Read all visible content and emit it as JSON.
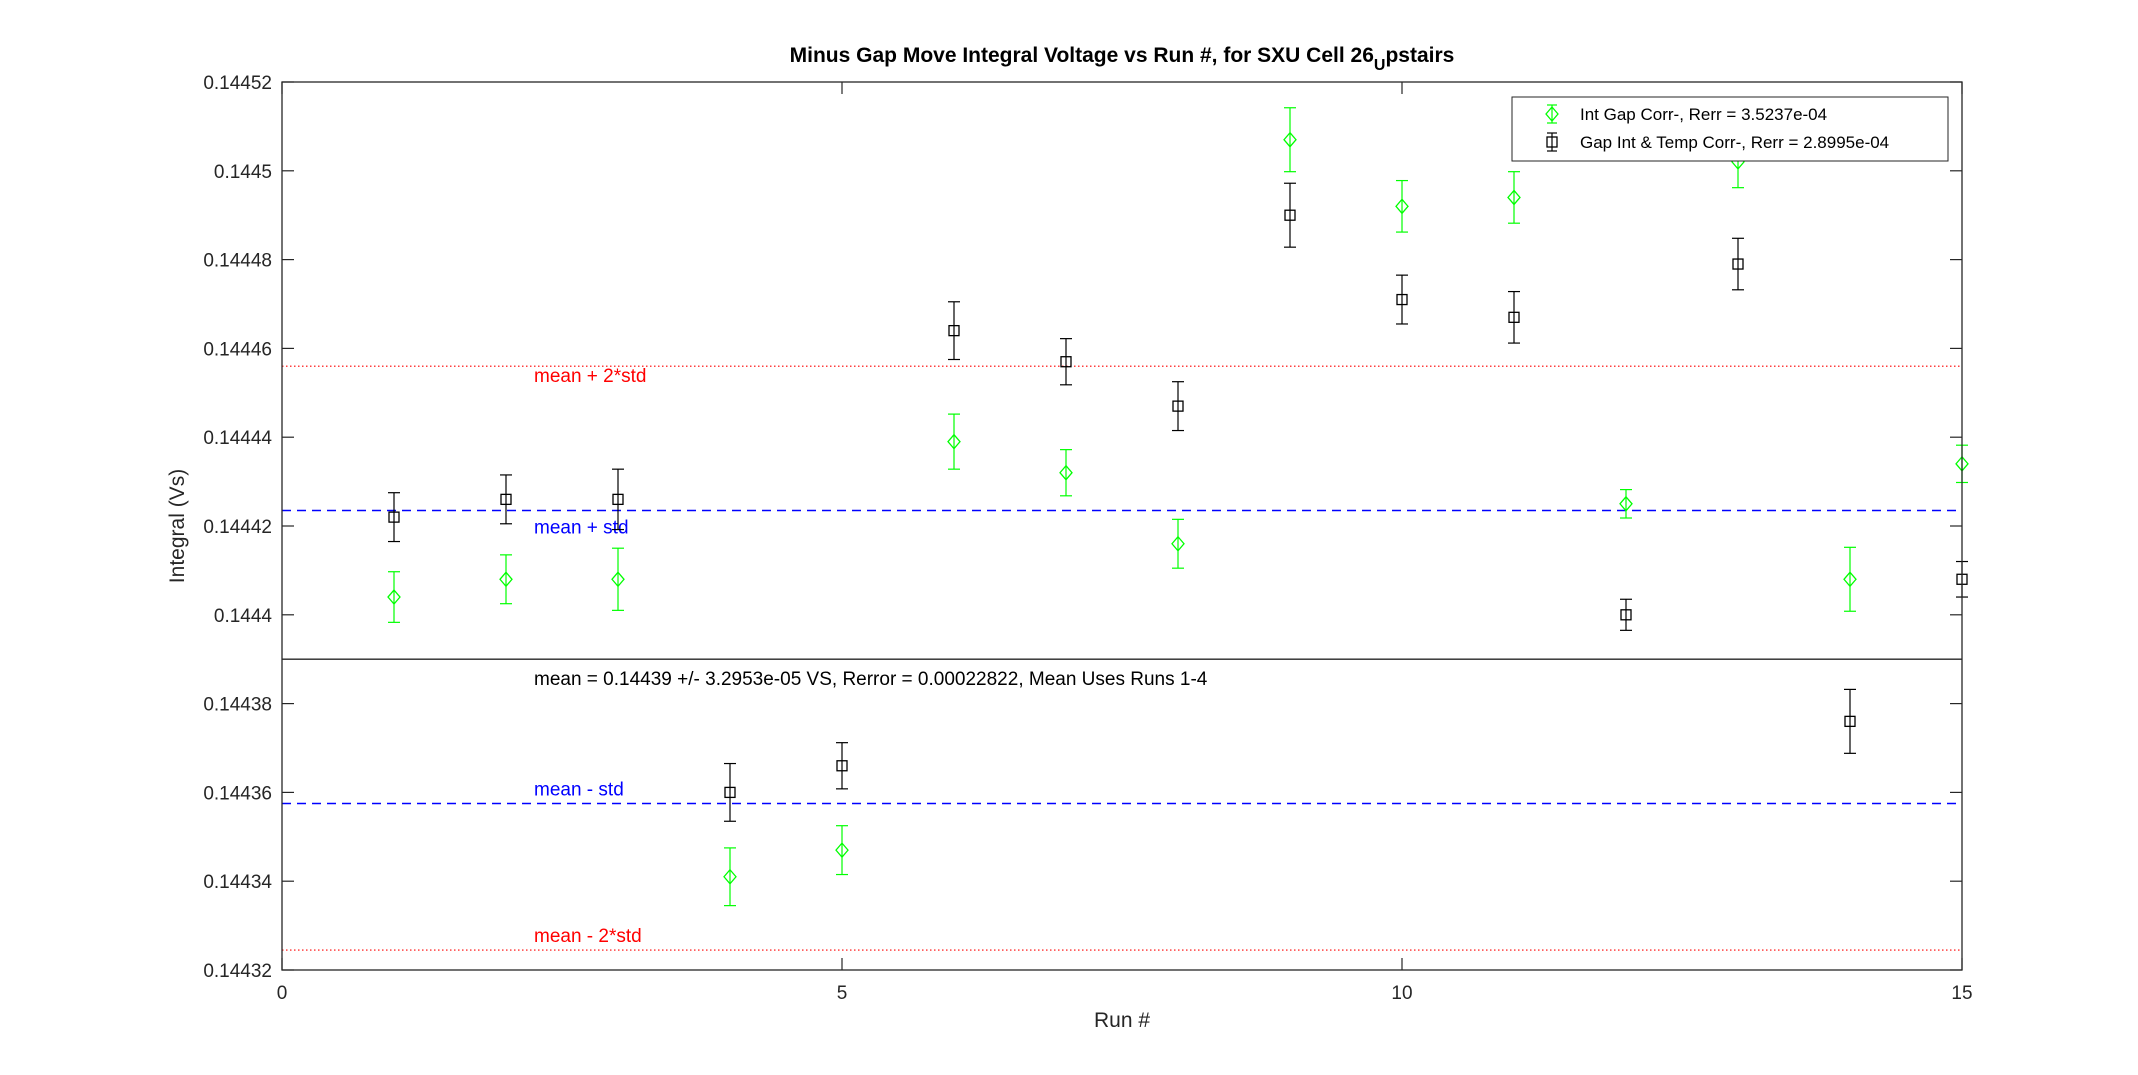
{
  "chart_data": {
    "type": "scatter",
    "title_main": "Minus Gap Move Integral Voltage vs Run #, for SXU Cell 26",
    "title_sub": "U",
    "title_rest": "pstairs",
    "xlabel": "Run #",
    "ylabel": "Integral (Vs)",
    "xlim": [
      0,
      15
    ],
    "ylim": [
      0.14432,
      0.14452
    ],
    "xticks": [
      0,
      5,
      10,
      15
    ],
    "xtick_labels": [
      "0",
      "5",
      "10",
      "15"
    ],
    "yticks": [
      0.14432,
      0.14434,
      0.14436,
      0.14438,
      0.1444,
      0.14442,
      0.14444,
      0.14446,
      0.14448,
      0.1445,
      0.14452
    ],
    "ytick_labels": [
      "0.14432",
      "0.14434",
      "0.14436",
      "0.14438",
      "0.1444",
      "0.14442",
      "0.14444",
      "0.14446",
      "0.14448",
      "0.1445",
      "0.14452"
    ],
    "legend_position": "top-right",
    "colors": {
      "green": "#00ff00",
      "black": "#000000",
      "red": "#ff0000",
      "blue": "#0000ff",
      "divider": "#262626"
    },
    "series": [
      {
        "name": "Int Gap Corr-, Rerr = 3.5237e-04",
        "marker": "diamond",
        "color": "#00ff00",
        "x": [
          1,
          2,
          3,
          4,
          5,
          6,
          7,
          8,
          9,
          10,
          11,
          12,
          13,
          14,
          15
        ],
        "y": [
          0.144404,
          0.144408,
          0.144408,
          0.144341,
          0.144347,
          0.144439,
          0.144432,
          0.144416,
          0.144507,
          0.144492,
          0.144494,
          0.144425,
          0.144502,
          0.144408,
          0.144434
        ],
        "err": [
          5.7e-06,
          5.5e-06,
          7e-06,
          6.5e-06,
          5.5e-06,
          6.2e-06,
          5.2e-06,
          5.5e-06,
          7.2e-06,
          5.8e-06,
          5.8e-06,
          3.2e-06,
          5.8e-06,
          7.2e-06,
          4.2e-06
        ]
      },
      {
        "name": "Gap Int & Temp Corr-, Rerr = 2.8995e-04",
        "marker": "square",
        "color": "#000000",
        "x": [
          1,
          2,
          3,
          4,
          5,
          6,
          7,
          8,
          9,
          10,
          11,
          12,
          13,
          14,
          15
        ],
        "y": [
          0.144422,
          0.144426,
          0.144426,
          0.14436,
          0.144366,
          0.144464,
          0.144457,
          0.144447,
          0.14449,
          0.144471,
          0.144467,
          0.1444,
          0.144479,
          0.144376,
          0.144408
        ],
        "err": [
          5.5e-06,
          5.5e-06,
          6.8e-06,
          6.5e-06,
          5.2e-06,
          6.5e-06,
          5.2e-06,
          5.5e-06,
          7.2e-06,
          5.5e-06,
          5.8e-06,
          3.5e-06,
          5.8e-06,
          7.2e-06,
          4e-06
        ]
      }
    ],
    "hlines": [
      {
        "y": 0.144456,
        "style": "dotted",
        "color": "#ff0000",
        "label": "mean + 2*std"
      },
      {
        "y": 0.1444235,
        "style": "dashed",
        "color": "#0000ff",
        "label": "mean + std"
      },
      {
        "y": 0.1443575,
        "style": "dashed",
        "color": "#0000ff",
        "label": "mean - std"
      },
      {
        "y": 0.1443245,
        "style": "dotted",
        "color": "#ff0000",
        "label": "mean - 2*std"
      }
    ],
    "mean_line": {
      "y": 0.14439,
      "label": "mean = 0.14439 +/- 3.2953e-05 VS, Rerror = 0.00022822, Mean Uses Runs 1-4"
    }
  }
}
